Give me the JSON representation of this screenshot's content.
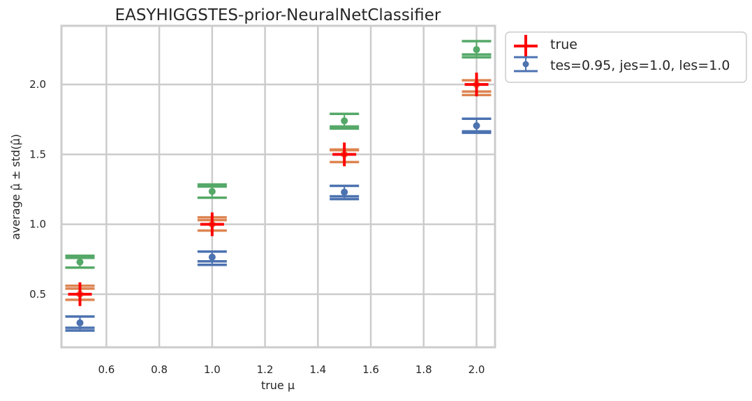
{
  "chart_data": {
    "type": "scatter",
    "title": "EASYHIGGSTES-prior-NeuralNetClassifier",
    "xlabel": "true μ",
    "ylabel": "average μ̂ ± std(μ̂)",
    "xlim": [
      0.43,
      2.07
    ],
    "ylim": [
      0.12,
      2.42
    ],
    "x_ticks": [
      0.6,
      0.8,
      1.0,
      1.2,
      1.4,
      1.6,
      1.8,
      2.0
    ],
    "x_tick_labels": [
      "0.6",
      "0.8",
      "1.0",
      "1.2",
      "1.4",
      "1.6",
      "1.8",
      "2.0"
    ],
    "y_ticks": [
      0.5,
      1.0,
      1.5,
      2.0
    ],
    "y_tick_labels": [
      "0.5",
      "1.0",
      "1.5",
      "2.0"
    ],
    "grid": true,
    "legend_position": "outside-upper-right",
    "legend_entries": [
      "true",
      "tes=0.95, jes=1.0, les=1.0"
    ],
    "series": [
      {
        "name": "true",
        "color": "#ff0000",
        "marker": "plus",
        "x": [
          0.5,
          1.0,
          1.5,
          2.0
        ],
        "y": [
          0.5,
          1.0,
          1.5,
          2.0
        ]
      },
      {
        "name": "tes=0.95, jes=1.0, les=1.0",
        "color": "#4c72b0",
        "marker": "errorbar",
        "x": [
          0.5,
          1.0,
          1.5,
          2.0
        ],
        "y": [
          0.295,
          0.765,
          1.23,
          1.705
        ],
        "caps": [
          [
            0.24,
            0.26,
            0.34
          ],
          [
            0.71,
            0.735,
            0.805
          ],
          [
            1.18,
            1.2,
            1.275
          ],
          [
            1.655,
            1.665,
            1.755
          ]
        ]
      },
      {
        "color": "#dd8452",
        "marker": "errorbar",
        "x": [
          0.5,
          1.0,
          1.5,
          2.0
        ],
        "y": [
          0.5,
          1.0,
          1.5,
          2.0
        ],
        "caps": [
          [
            0.46,
            0.54,
            0.56
          ],
          [
            0.955,
            1.03,
            1.05
          ],
          [
            1.445,
            1.53,
            1.535
          ],
          [
            1.925,
            1.95,
            2.03
          ]
        ]
      },
      {
        "color": "#55a868",
        "marker": "errorbar",
        "x": [
          0.5,
          1.0,
          1.5,
          2.0
        ],
        "y": [
          0.73,
          1.235,
          1.74,
          2.25
        ],
        "caps": [
          [
            0.69,
            0.76,
            0.775
          ],
          [
            1.19,
            1.27,
            1.285
          ],
          [
            1.685,
            1.7,
            1.79
          ],
          [
            2.195,
            2.215,
            2.31
          ]
        ]
      }
    ]
  }
}
